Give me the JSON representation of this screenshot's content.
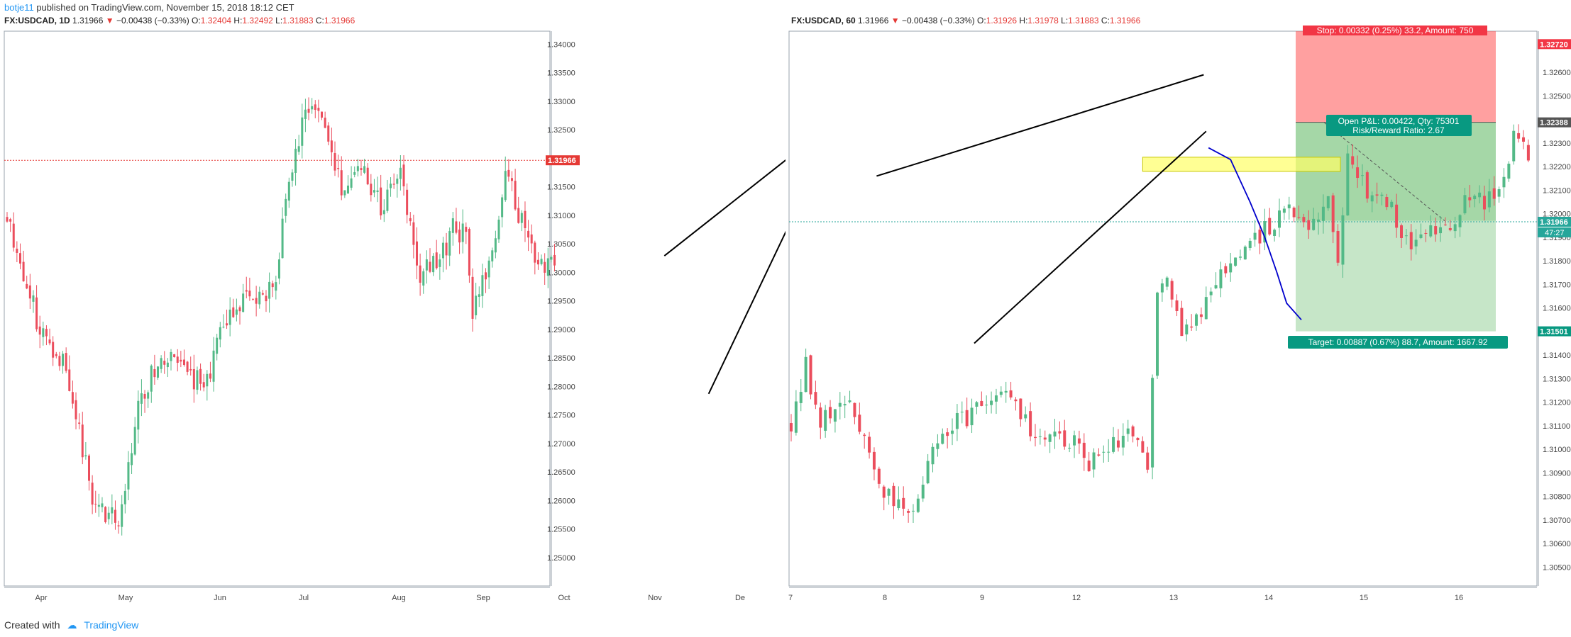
{
  "header": {
    "author": "botje11",
    "published": "published on TradingView.com, November 15, 2018 18:12 CET"
  },
  "footer": {
    "created_with": "Created with",
    "brand": "TradingView"
  },
  "colors": {
    "up": "#26a69a",
    "up_fill": "#53b987",
    "down": "#ef5350",
    "down_fill": "#eb4d5c",
    "price_red": "#e53935",
    "trend_blue": "#0000cc",
    "axis_text": "#444444",
    "border": "#9aa3ad"
  },
  "chart_data": [
    {
      "type": "candlestick",
      "symbol": "FX:USDCAD",
      "interval": "1D",
      "last": "1.31966",
      "change": "−0.00438 (−0.33%)",
      "ohlc_label": {
        "O": "1.32404",
        "H": "1.32492",
        "L": "1.31883",
        "C": "1.31966"
      },
      "x_ticks": [
        "Apr",
        "May",
        "Jun",
        "Jul",
        "Aug",
        "Sep",
        "Oct",
        "Nov",
        "De"
      ],
      "y_ticks": [
        "1.34000",
        "1.33500",
        "1.33000",
        "1.32500",
        "1.32000",
        "1.31500",
        "1.31000",
        "1.30500",
        "1.30000",
        "1.29500",
        "1.29000",
        "1.28500",
        "1.28000",
        "1.27500",
        "1.27000",
        "1.26500",
        "1.26000",
        "1.25500",
        "1.25000"
      ],
      "ylim": [
        1.245,
        1.3423
      ],
      "n_bars": 168,
      "current_price_label": "1.31966",
      "close_path": [
        [
          0,
          1.31
        ],
        [
          10,
          1.29
        ],
        [
          18,
          1.284
        ],
        [
          26,
          1.26
        ],
        [
          34,
          1.256
        ],
        [
          40,
          1.276
        ],
        [
          46,
          1.285
        ],
        [
          54,
          1.283
        ],
        [
          60,
          1.28
        ],
        [
          66,
          1.29
        ],
        [
          72,
          1.295
        ],
        [
          78,
          1.295
        ],
        [
          82,
          1.3
        ],
        [
          86,
          1.316
        ],
        [
          92,
          1.33
        ],
        [
          97,
          1.325
        ],
        [
          102,
          1.314
        ],
        [
          108,
          1.32
        ],
        [
          114,
          1.311
        ],
        [
          120,
          1.318
        ],
        [
          126,
          1.3
        ],
        [
          132,
          1.302
        ],
        [
          136,
          1.308
        ],
        [
          140,
          1.306
        ],
        [
          142,
          1.292
        ],
        [
          146,
          1.3
        ],
        [
          150,
          1.308
        ],
        [
          152,
          1.317
        ],
        [
          154,
          1.314
        ],
        [
          160,
          1.304
        ],
        [
          164,
          1.3
        ],
        [
          168,
          1.304
        ],
        [
          170,
          1.295
        ],
        [
          175,
          1.29
        ],
        [
          178,
          1.304
        ],
        [
          182,
          1.302
        ],
        [
          185,
          1.303
        ],
        [
          189,
          1.284
        ],
        [
          191,
          1.283
        ],
        [
          194,
          1.292
        ],
        [
          198,
          1.3
        ],
        [
          202,
          1.305
        ],
        [
          206,
          1.303
        ],
        [
          212,
          1.301
        ],
        [
          216,
          1.305
        ],
        [
          220,
          1.305
        ],
        [
          224,
          1.308
        ],
        [
          228,
          1.306
        ],
        [
          232,
          1.312
        ],
        [
          235,
          1.308
        ],
        [
          239,
          1.318
        ],
        [
          242,
          1.322
        ],
        [
          244,
          1.323
        ],
        [
          246,
          1.32
        ]
      ],
      "annotations": [
        {
          "kind": "trendline",
          "x1": 200.5,
          "y1": 1.3029,
          "x2": 241.5,
          "y2": 1.3215
        },
        {
          "kind": "trendline",
          "x1": 214,
          "y1": 1.2787,
          "x2": 242.5,
          "y2": 1.3131
        },
        {
          "kind": "projection",
          "points": [
            [
              245.5,
              1.3222
            ],
            [
              249,
              1.315
            ],
            [
              251,
              1.31
            ],
            [
              251.5,
              1.304
            ],
            [
              253,
              1.3
            ],
            [
              254,
              1.294
            ],
            [
              254.5,
              1.289
            ],
            [
              256,
              1.2865
            ],
            [
              257.5,
              1.2845
            ]
          ]
        }
      ]
    },
    {
      "type": "candlestick",
      "symbol": "FX:USDCAD",
      "interval": "60",
      "last": "1.31966",
      "change": "−0.00438 (−0.33%)",
      "ohlc_label": {
        "O": "1.31926",
        "H": "1.31978",
        "L": "1.31883",
        "C": "1.31966"
      },
      "x_ticks": [
        "7",
        "8",
        "9",
        "12",
        "13",
        "14",
        "15",
        "16"
      ],
      "y_ticks": [
        "1.32600",
        "1.32500",
        "1.32300",
        "1.32200",
        "1.32100",
        "1.32000",
        "1.31900",
        "1.31800",
        "1.31700",
        "1.31600",
        "1.31400",
        "1.31300",
        "1.31200",
        "1.31100",
        "1.31000",
        "1.30900",
        "1.30800",
        "1.30700",
        "1.30600",
        "1.30500"
      ],
      "ylim": [
        1.3042,
        1.32775
      ],
      "n_bars": 152,
      "current_price_label": "1.31966",
      "countdown_label": "47:27",
      "close_path": [
        [
          0,
          1.311
        ],
        [
          3,
          1.3135
        ],
        [
          6,
          1.311
        ],
        [
          10,
          1.312
        ],
        [
          13,
          1.3115
        ],
        [
          16,
          1.3095
        ],
        [
          19,
          1.308
        ],
        [
          23,
          1.3075
        ],
        [
          26,
          1.3075
        ],
        [
          29,
          1.3105
        ],
        [
          33,
          1.311
        ],
        [
          37,
          1.3115
        ],
        [
          41,
          1.312
        ],
        [
          45,
          1.3125
        ],
        [
          49,
          1.311
        ],
        [
          53,
          1.3105
        ],
        [
          57,
          1.3105
        ],
        [
          60,
          1.3095
        ],
        [
          64,
          1.3095
        ],
        [
          67,
          1.3105
        ],
        [
          71,
          1.3105
        ],
        [
          73,
          1.3095
        ],
        [
          75,
          1.317
        ],
        [
          77,
          1.3175
        ],
        [
          79,
          1.3155
        ],
        [
          81,
          1.315
        ],
        [
          83,
          1.3155
        ],
        [
          86,
          1.3165
        ],
        [
          90,
          1.318
        ],
        [
          94,
          1.3185
        ],
        [
          98,
          1.3195
        ],
        [
          102,
          1.32
        ],
        [
          106,
          1.3195
        ],
        [
          110,
          1.3205
        ],
        [
          112,
          1.3175
        ],
        [
          114,
          1.3225
        ],
        [
          118,
          1.321
        ],
        [
          122,
          1.3205
        ],
        [
          126,
          1.319
        ],
        [
          128,
          1.3185
        ],
        [
          130,
          1.319
        ],
        [
          134,
          1.3195
        ],
        [
          138,
          1.3205
        ],
        [
          142,
          1.3205
        ],
        [
          146,
          1.3215
        ],
        [
          148,
          1.3235
        ],
        [
          150,
          1.323
        ],
        [
          152,
          1.322
        ]
      ],
      "position": {
        "kind": "short",
        "entry": 1.32388,
        "stop": 1.3272,
        "target": 1.31501,
        "entry_label": "1.32388",
        "stop_label": "1.32720",
        "target_label": "1.31501",
        "stop_text": "Stop: 0.00332 (0.25%) 33.2, Amount: 750",
        "open_text": "Open P&L: 0.00422, Qty: 75301",
        "ratio_text": "Risk/Reward Ratio: 2.67",
        "target_text": "Target: 0.00887 (0.67%) 88.7, Amount: 1667.92"
      },
      "annotations": [
        {
          "kind": "trendline",
          "x1": 17.5,
          "y1": 1.3216,
          "x2": 84.5,
          "y2": 1.3259
        },
        {
          "kind": "trendline",
          "x1": 37.5,
          "y1": 1.3145,
          "x2": 85,
          "y2": 1.3235
        },
        {
          "kind": "zone",
          "x1": 72,
          "x2": 112.5,
          "y1": 1.3218,
          "y2": 1.3224
        },
        {
          "kind": "projection",
          "points": [
            [
              85.5,
              1.3228
            ],
            [
              90,
              1.3223
            ],
            [
              94,
              1.3205
            ],
            [
              97,
              1.319
            ],
            [
              99.5,
              1.3175
            ],
            [
              101.5,
              1.3162
            ],
            [
              104.5,
              1.3155
            ]
          ]
        }
      ]
    }
  ]
}
